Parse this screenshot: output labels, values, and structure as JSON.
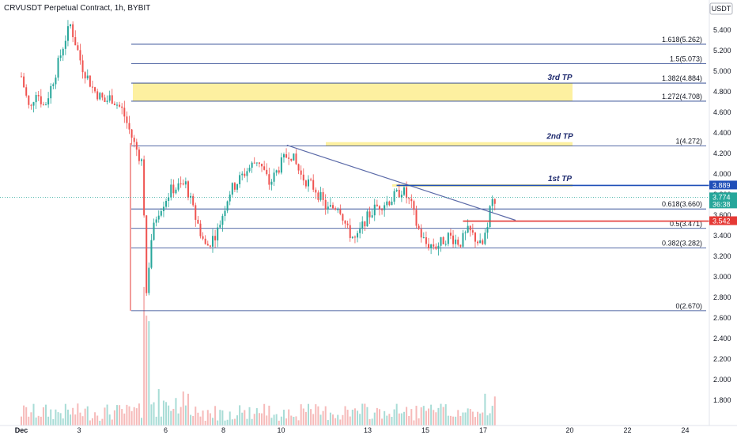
{
  "header": {
    "title": "CRVUSDT Perpetual Contract, 1h, BYBIT",
    "currency": "USDT"
  },
  "colors": {
    "up": "#26a69a",
    "down": "#ef5350",
    "fib": "#1e3a8a",
    "highlight": "#fdf0a0",
    "trend": "#5b6aa8",
    "blue_badge": "#1f4fb8",
    "red_badge": "#e53935",
    "green_badge": "#26a69a"
  },
  "chart_data": {
    "type": "candlestick",
    "symbol": "CRVUSDT",
    "interval": "1h",
    "exchange": "BYBIT",
    "y_range": [
      1.6,
      5.5
    ],
    "y_ticks": [
      "5.400",
      "5.200",
      "5.000",
      "4.800",
      "4.600",
      "4.400",
      "4.200",
      "4.000",
      "3.800",
      "3.600",
      "3.400",
      "3.200",
      "3.000",
      "2.800",
      "2.600",
      "2.400",
      "2.200",
      "2.000",
      "1.800"
    ],
    "x_ticks": [
      {
        "day": 1,
        "label": "Dec"
      },
      {
        "day": 3,
        "label": "3"
      },
      {
        "day": 6,
        "label": "6"
      },
      {
        "day": 8,
        "label": "8"
      },
      {
        "day": 10,
        "label": "10"
      },
      {
        "day": 13,
        "label": "13"
      },
      {
        "day": 15,
        "label": "15"
      },
      {
        "day": 17,
        "label": "17"
      },
      {
        "day": 20,
        "label": "20"
      },
      {
        "day": 22,
        "label": "22"
      },
      {
        "day": 24,
        "label": "24"
      }
    ],
    "fib_levels": [
      {
        "ratio": "1.618",
        "price": 5.262,
        "label": "1.618(5.262)"
      },
      {
        "ratio": "1.5",
        "price": 5.073,
        "label": "1.5(5.073)"
      },
      {
        "ratio": "1.382",
        "price": 4.884,
        "label": "1.382(4.884)"
      },
      {
        "ratio": "1.272",
        "price": 4.708,
        "label": "1.272(4.708)"
      },
      {
        "ratio": "1",
        "price": 4.272,
        "label": "1(4.272)"
      },
      {
        "ratio": "0.618",
        "price": 3.66,
        "label": "0.618(3.660)"
      },
      {
        "ratio": "0.5",
        "price": 3.471,
        "label": "0.5(3.471)"
      },
      {
        "ratio": "0.382",
        "price": 3.282,
        "label": "0.382(3.282)"
      },
      {
        "ratio": "0",
        "price": 2.67,
        "label": "0(2.670)"
      }
    ],
    "targets": [
      {
        "label": "3rd TP",
        "top": 4.884,
        "bottom": 4.708
      },
      {
        "label": "2nd TP",
        "top": 4.31,
        "bottom": 4.272
      },
      {
        "label": "1st TP",
        "top": 3.9,
        "bottom": 3.88
      }
    ],
    "price_badges": [
      {
        "price": 3.889,
        "label": "3.889",
        "kind": "blue"
      },
      {
        "price": 3.774,
        "label": "3.774",
        "sub": "36:38",
        "kind": "green"
      },
      {
        "price": 3.542,
        "label": "3.542",
        "kind": "red"
      }
    ],
    "last_price": 3.774,
    "trendline": {
      "from": {
        "day": 9.2,
        "price": 4.28
      },
      "to": {
        "day": 16.3,
        "price": 3.55
      }
    },
    "horizontal_lines": [
      {
        "price": 3.889,
        "from_day": 13.0,
        "kind": "blue"
      },
      {
        "price": 3.542,
        "from_day": 15.3,
        "kind": "red"
      }
    ],
    "price_path": [
      {
        "day": 0.0,
        "price": 4.95
      },
      {
        "day": 0.3,
        "price": 4.6
      },
      {
        "day": 0.5,
        "price": 4.82
      },
      {
        "day": 0.8,
        "price": 4.65
      },
      {
        "day": 1.2,
        "price": 5.0
      },
      {
        "day": 1.5,
        "price": 5.3
      },
      {
        "day": 1.7,
        "price": 5.45
      },
      {
        "day": 1.9,
        "price": 5.25
      },
      {
        "day": 2.1,
        "price": 5.05
      },
      {
        "day": 2.5,
        "price": 4.82
      },
      {
        "day": 2.9,
        "price": 4.7
      },
      {
        "day": 3.1,
        "price": 4.75
      },
      {
        "day": 3.5,
        "price": 4.62
      },
      {
        "day": 3.9,
        "price": 4.3
      },
      {
        "day": 4.2,
        "price": 4.1
      },
      {
        "day": 4.35,
        "price": 2.7
      },
      {
        "day": 4.45,
        "price": 3.3
      },
      {
        "day": 4.7,
        "price": 3.62
      },
      {
        "day": 5.2,
        "price": 3.85
      },
      {
        "day": 5.7,
        "price": 3.9
      },
      {
        "day": 6.0,
        "price": 3.6
      },
      {
        "day": 6.4,
        "price": 3.28
      },
      {
        "day": 6.8,
        "price": 3.45
      },
      {
        "day": 7.2,
        "price": 3.82
      },
      {
        "day": 7.7,
        "price": 4.0
      },
      {
        "day": 8.2,
        "price": 4.15
      },
      {
        "day": 8.6,
        "price": 3.9
      },
      {
        "day": 9.0,
        "price": 4.1
      },
      {
        "day": 9.3,
        "price": 4.22
      },
      {
        "day": 9.7,
        "price": 3.98
      },
      {
        "day": 10.2,
        "price": 3.85
      },
      {
        "day": 10.6,
        "price": 3.65
      },
      {
        "day": 11.0,
        "price": 3.7
      },
      {
        "day": 11.3,
        "price": 3.45
      },
      {
        "day": 11.6,
        "price": 3.35
      },
      {
        "day": 11.9,
        "price": 3.55
      },
      {
        "day": 12.3,
        "price": 3.68
      },
      {
        "day": 12.8,
        "price": 3.75
      },
      {
        "day": 13.2,
        "price": 3.85
      },
      {
        "day": 13.5,
        "price": 3.7
      },
      {
        "day": 13.7,
        "price": 3.5
      },
      {
        "day": 14.0,
        "price": 3.32
      },
      {
        "day": 14.4,
        "price": 3.3
      },
      {
        "day": 14.8,
        "price": 3.4
      },
      {
        "day": 15.2,
        "price": 3.33
      },
      {
        "day": 15.5,
        "price": 3.45
      },
      {
        "day": 15.8,
        "price": 3.35
      },
      {
        "day": 15.95,
        "price": 3.28
      },
      {
        "day": 16.1,
        "price": 3.45
      },
      {
        "day": 16.25,
        "price": 3.7
      },
      {
        "day": 16.45,
        "price": 3.78
      }
    ]
  }
}
